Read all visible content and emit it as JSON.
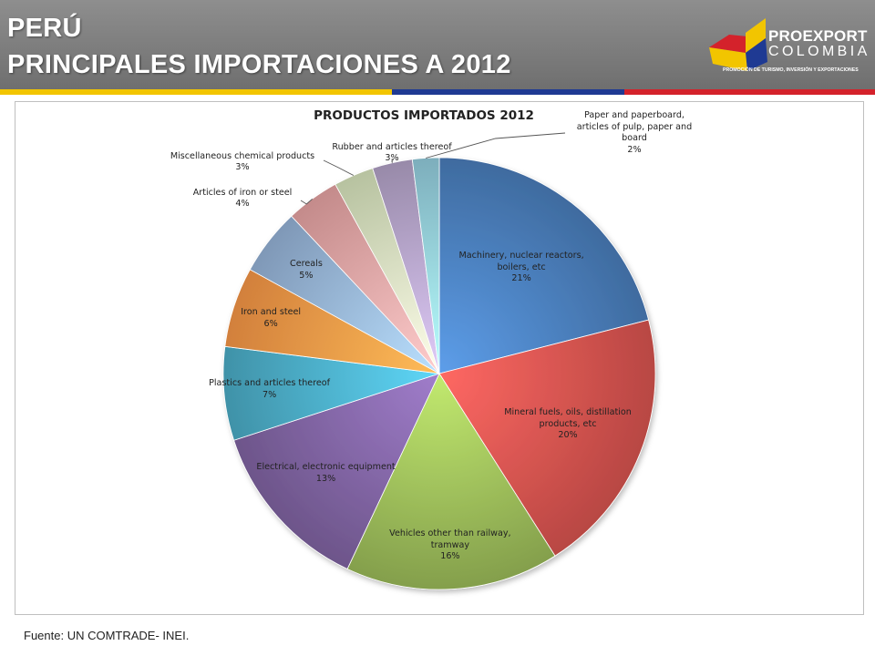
{
  "slide": {
    "title_line1": "PERÚ",
    "title_line2": "PRINCIPALES IMPORTACIONES A 2012",
    "source": "Fuente: UN COMTRADE- INEI."
  },
  "logo": {
    "name": "PROEXPORT",
    "sub": "COLOMBIA",
    "tagline": "PROMOCIÓN DE TURISMO, INVERSIÓN Y EXPORTACIONES"
  },
  "colors": {
    "header": "#7f7f7f",
    "stripe_yellow": "#f2c500",
    "stripe_blue": "#1f3a93",
    "stripe_red": "#d4222b"
  },
  "chart_data": {
    "type": "pie",
    "title": "PRODUCTOS IMPORTADOS 2012",
    "slices": [
      {
        "name": "Machinery, nuclear reactors, boilers, etc",
        "label_lines": [
          "Machinery, nuclear reactors,",
          "boilers, etc"
        ],
        "pct": "21%",
        "value": 21,
        "color": "#4a7ebb"
      },
      {
        "name": "Mineral fuels, oils, distillation products, etc",
        "label_lines": [
          "Mineral fuels, oils, distillation",
          "products, etc"
        ],
        "pct": "20%",
        "value": 20,
        "color": "#d9534f"
      },
      {
        "name": "Vehicles other than railway, tramway",
        "label_lines": [
          "Vehicles other than railway,",
          "tramway"
        ],
        "pct": "16%",
        "value": 16,
        "color": "#9bbb59"
      },
      {
        "name": "Electrical, electronic equipment",
        "label_lines": [
          "Electrical, electronic equipment"
        ],
        "pct": "13%",
        "value": 13,
        "color": "#8064a2"
      },
      {
        "name": "Plastics and articles thereof",
        "label_lines": [
          "Plastics and articles thereof"
        ],
        "pct": "7%",
        "value": 7,
        "color": "#4bacc6"
      },
      {
        "name": "Iron and steel",
        "label_lines": [
          "Iron and steel"
        ],
        "pct": "6%",
        "value": 6,
        "color": "#f79646"
      },
      {
        "name": "Cereals",
        "label_lines": [
          "Cereals"
        ],
        "pct": "5%",
        "value": 5,
        "color": "#95b3d7"
      },
      {
        "name": "Articles of iron or steel",
        "label_lines": [
          "Articles of iron or steel"
        ],
        "pct": "4%",
        "value": 4,
        "color": "#e6a3a3"
      },
      {
        "name": "Miscellaneous chemical products",
        "label_lines": [
          "Miscellaneous chemical products"
        ],
        "pct": "3%",
        "value": 3,
        "color": "#d7e4bc"
      },
      {
        "name": "Rubber and articles thereof",
        "label_lines": [
          "Rubber and articles thereof"
        ],
        "pct": "3%",
        "value": 3,
        "color": "#b3a2c7"
      },
      {
        "name": "Paper and paperboard, articles of pulp, paper and board",
        "label_lines": [
          "Paper and paperboard,",
          "articles of pulp, paper and",
          "board"
        ],
        "pct": "2%",
        "value": 2,
        "color": "#93cddd"
      }
    ],
    "legend": "none"
  }
}
